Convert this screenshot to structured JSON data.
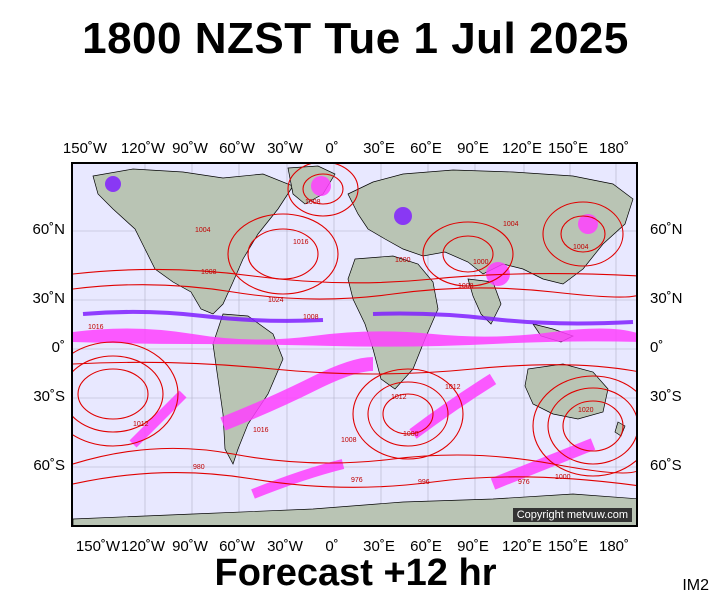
{
  "title": "1800 NZST Tue 1 Jul 2025",
  "subtitle": "Forecast +12 hr",
  "image_code": "IM2",
  "copyright": "Copyright metvuw.com",
  "lon_labels": [
    "150˚W",
    "120˚W",
    "90˚W",
    "60˚W",
    "30˚W",
    "0˚",
    "30˚E",
    "60˚E",
    "90˚E",
    "120˚E",
    "150˚E",
    "180˚"
  ],
  "lat_labels": [
    "60˚N",
    "30˚N",
    "0˚",
    "30˚S",
    "60˚S"
  ],
  "isobar_labels": [
    "1008",
    "1004",
    "1016",
    "1024",
    "1008",
    "1000",
    "1008",
    "1000",
    "1004",
    "1016",
    "1008",
    "1004",
    "1012",
    "1000",
    "1012",
    "976",
    "996",
    "976",
    "980",
    "1020",
    "1012",
    "1016",
    "1008",
    "1000"
  ],
  "colors": {
    "land": "#b9c4b4",
    "ocean": "#e8e8ff",
    "isobar": "#e00000",
    "precip_light": "#ff40ff",
    "precip_heavy": "#8020ff"
  }
}
